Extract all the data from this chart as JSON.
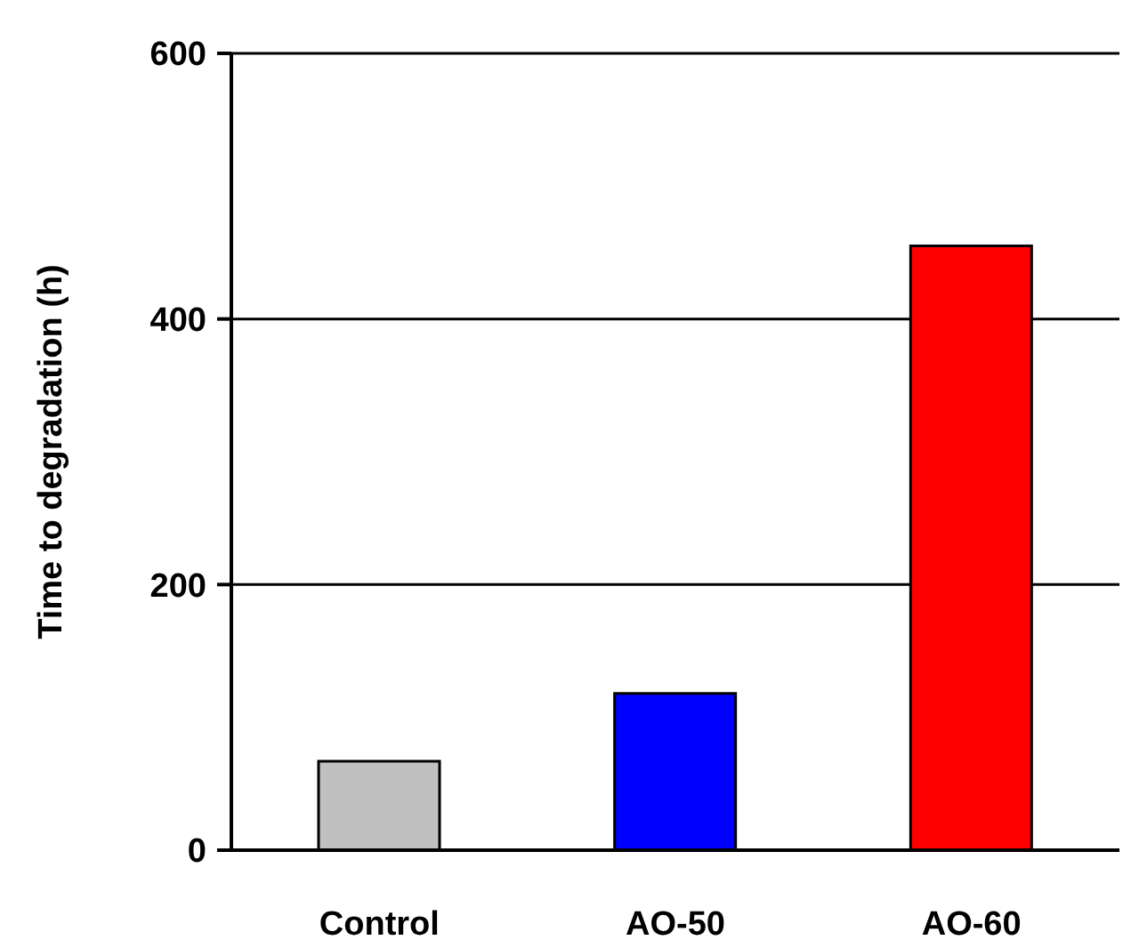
{
  "chart_data": {
    "type": "bar",
    "ylabel": "Time to degradation (h)",
    "categories": [
      "Control",
      "AO-50",
      "AO-60"
    ],
    "values": [
      67,
      118,
      455
    ],
    "colors": [
      "#c0c0c0",
      "#0000ff",
      "#ff0000"
    ],
    "ylim": [
      0,
      600
    ],
    "yticks": [
      0,
      200,
      400,
      600
    ],
    "grid": "y"
  }
}
